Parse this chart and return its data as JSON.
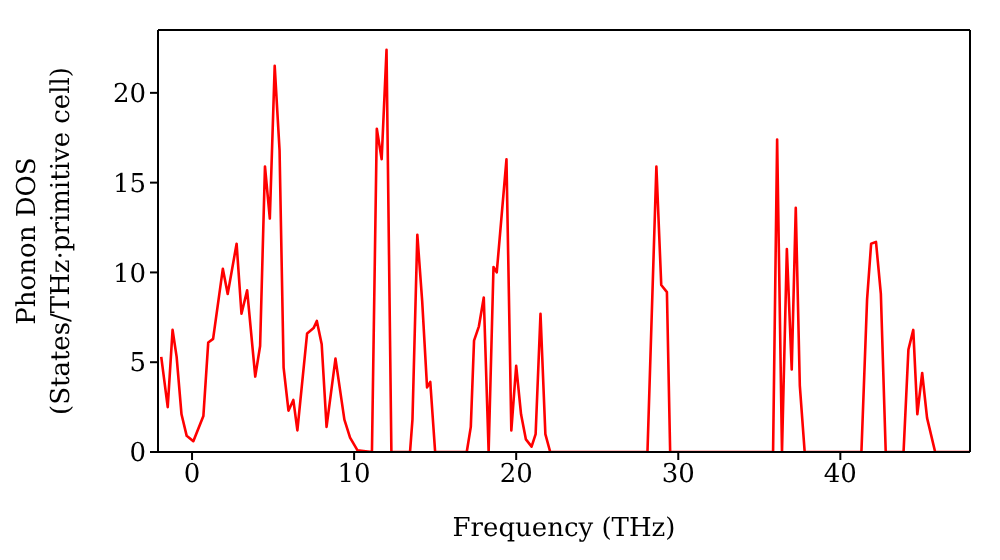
{
  "chart_data": {
    "type": "line",
    "xlabel": "Frequency (THz)",
    "ylabel": "Phonon DOS\n(States/THz·primitive cell)",
    "x": [
      -1.9,
      -1.5,
      -1.2,
      -0.95,
      -0.65,
      -0.33,
      0.08,
      0.7,
      1.0,
      1.3,
      1.9,
      2.2,
      2.75,
      3.05,
      3.4,
      3.9,
      4.2,
      4.5,
      4.8,
      5.1,
      5.4,
      5.65,
      5.95,
      6.25,
      6.5,
      7.1,
      7.5,
      7.7,
      8.0,
      8.3,
      8.85,
      9.4,
      9.75,
      10.2,
      11.1,
      11.4,
      11.7,
      12.0,
      12.3,
      13.45,
      13.6,
      13.9,
      14.2,
      14.5,
      14.7,
      15.0,
      16.95,
      17.2,
      17.4,
      17.7,
      18.0,
      18.3,
      18.6,
      18.8,
      19.4,
      19.7,
      20.0,
      20.3,
      20.6,
      20.95,
      21.2,
      21.5,
      21.8,
      22.1,
      28.1,
      28.65,
      28.95,
      29.3,
      29.5,
      35.85,
      36.1,
      36.4,
      36.7,
      37.0,
      37.25,
      37.5,
      37.8,
      41.3,
      41.65,
      41.9,
      42.2,
      42.5,
      42.8,
      43.9,
      44.2,
      44.5,
      44.75,
      45.05,
      45.35,
      45.85,
      48
    ],
    "values": [
      5.3,
      2.5,
      6.8,
      5.3,
      2.1,
      0.9,
      0.6,
      2.0,
      6.1,
      6.3,
      10.2,
      8.8,
      11.6,
      7.7,
      9.0,
      4.2,
      5.9,
      15.9,
      13.0,
      21.5,
      16.8,
      4.7,
      2.3,
      2.9,
      1.2,
      6.6,
      6.9,
      7.3,
      6.0,
      1.4,
      5.2,
      1.8,
      0.8,
      0.1,
      0,
      18.0,
      16.3,
      22.4,
      0,
      0,
      1.8,
      12.1,
      8.4,
      3.6,
      3.9,
      0,
      0,
      1.4,
      6.2,
      7.0,
      8.6,
      0,
      10.3,
      10.0,
      16.3,
      1.2,
      4.8,
      2.1,
      0.7,
      0.3,
      1.0,
      7.7,
      1.0,
      0,
      0,
      15.9,
      9.3,
      8.9,
      0,
      0,
      17.4,
      0,
      11.3,
      4.6,
      13.6,
      3.7,
      0,
      0,
      8.5,
      11.6,
      11.7,
      8.8,
      0,
      0,
      5.7,
      6.8,
      2.1,
      4.4,
      1.9,
      0,
      0
    ],
    "color": "#ff0000",
    "line_style": "solid",
    "marker": "none",
    "grid": false,
    "legend": false,
    "xlim": [
      -2.1,
      48
    ],
    "xticks": [
      0,
      10,
      20,
      30,
      40
    ],
    "ylim": [
      0,
      23.5
    ],
    "yticks": [
      0,
      5,
      10,
      15,
      20
    ]
  }
}
